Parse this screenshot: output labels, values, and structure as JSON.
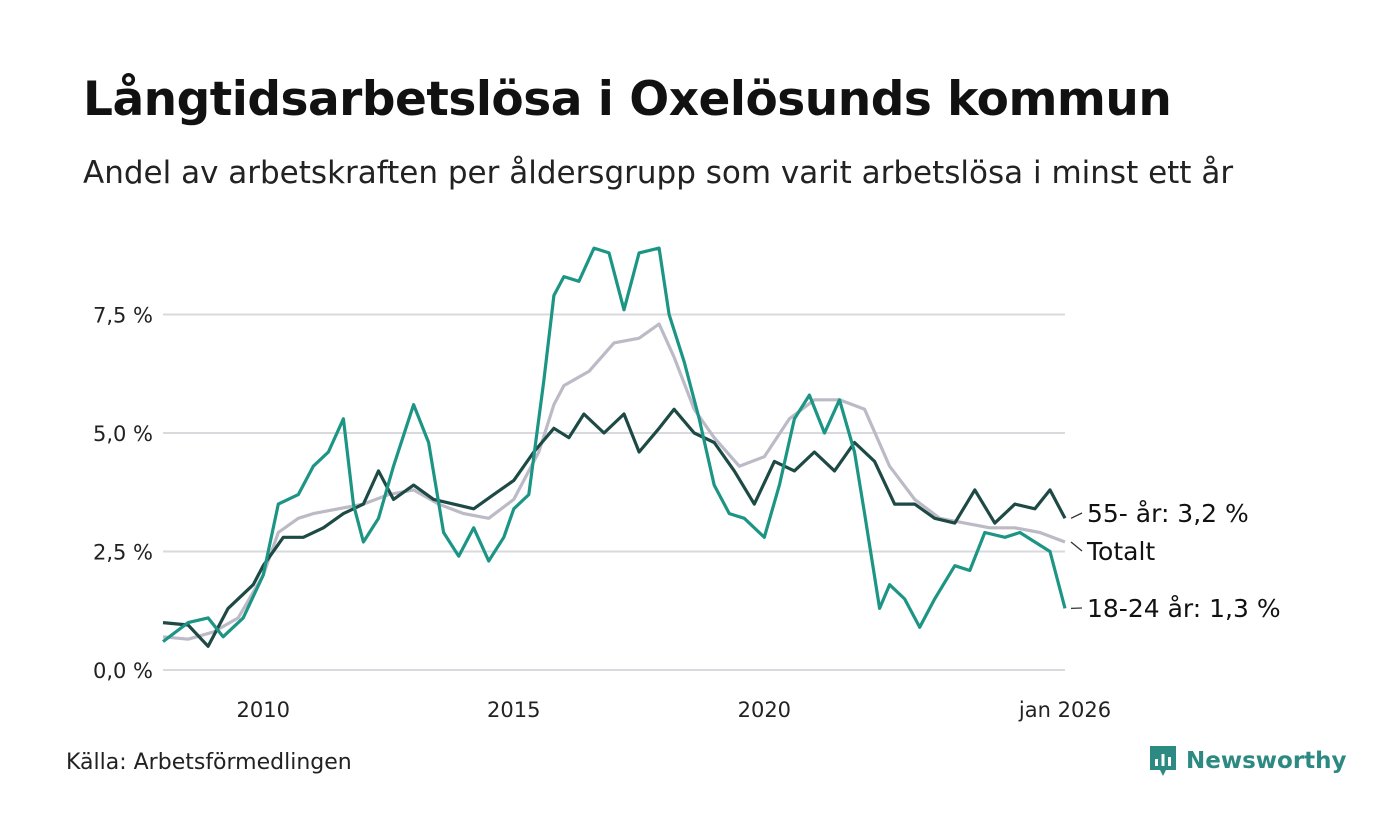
{
  "title": "Långtidsarbetslösa i Oxelösunds kommun",
  "subtitle": "Andel av arbetskraften per åldersgrupp som varit arbetslösa i minst ett år",
  "source": "Källa: Arbetsförmedlingen",
  "brand": "Newsworthy",
  "chart_data": {
    "type": "line",
    "ylim": [
      0,
      9.2
    ],
    "xlim": [
      2008.0,
      2026.05
    ],
    "y_ticks": [
      0,
      2.5,
      5.0,
      7.5
    ],
    "y_tick_labels": [
      "0,0 %",
      "2,5 %",
      "5,0 %",
      "7,5 %"
    ],
    "x_ticks": [
      2010,
      2015,
      2020,
      2026.0
    ],
    "x_tick_labels": [
      "2010",
      "2015",
      "2020",
      "jan 2026"
    ],
    "series": [
      {
        "name": "Totalt",
        "end_label": "Totalt",
        "color": "#bdbac8",
        "points": [
          [
            2008.0,
            0.7
          ],
          [
            2008.5,
            0.65
          ],
          [
            2009.0,
            0.8
          ],
          [
            2009.5,
            1.1
          ],
          [
            2010.0,
            2.0
          ],
          [
            2010.3,
            2.9
          ],
          [
            2010.7,
            3.2
          ],
          [
            2011.0,
            3.3
          ],
          [
            2011.5,
            3.4
          ],
          [
            2012.0,
            3.5
          ],
          [
            2012.5,
            3.7
          ],
          [
            2013.0,
            3.8
          ],
          [
            2013.5,
            3.5
          ],
          [
            2014.0,
            3.3
          ],
          [
            2014.5,
            3.2
          ],
          [
            2015.0,
            3.6
          ],
          [
            2015.5,
            4.6
          ],
          [
            2015.8,
            5.6
          ],
          [
            2016.0,
            6.0
          ],
          [
            2016.5,
            6.3
          ],
          [
            2017.0,
            6.9
          ],
          [
            2017.5,
            7.0
          ],
          [
            2017.9,
            7.3
          ],
          [
            2018.2,
            6.6
          ],
          [
            2018.6,
            5.5
          ],
          [
            2019.0,
            4.9
          ],
          [
            2019.5,
            4.3
          ],
          [
            2020.0,
            4.5
          ],
          [
            2020.5,
            5.3
          ],
          [
            2021.0,
            5.7
          ],
          [
            2021.5,
            5.7
          ],
          [
            2022.0,
            5.5
          ],
          [
            2022.5,
            4.3
          ],
          [
            2023.0,
            3.6
          ],
          [
            2023.5,
            3.2
          ],
          [
            2024.0,
            3.1
          ],
          [
            2024.5,
            3.0
          ],
          [
            2025.0,
            3.0
          ],
          [
            2025.5,
            2.9
          ],
          [
            2026.0,
            2.7
          ]
        ]
      },
      {
        "name": "55- år",
        "end_label": "55- år: 3,2 %",
        "color": "#1e4a45",
        "points": [
          [
            2008.0,
            1.0
          ],
          [
            2008.5,
            0.95
          ],
          [
            2008.9,
            0.5
          ],
          [
            2009.3,
            1.3
          ],
          [
            2009.8,
            1.8
          ],
          [
            2010.0,
            2.2
          ],
          [
            2010.4,
            2.8
          ],
          [
            2010.8,
            2.8
          ],
          [
            2011.2,
            3.0
          ],
          [
            2011.6,
            3.3
          ],
          [
            2012.0,
            3.5
          ],
          [
            2012.3,
            4.2
          ],
          [
            2012.6,
            3.6
          ],
          [
            2013.0,
            3.9
          ],
          [
            2013.4,
            3.6
          ],
          [
            2013.8,
            3.5
          ],
          [
            2014.2,
            3.4
          ],
          [
            2014.6,
            3.7
          ],
          [
            2015.0,
            4.0
          ],
          [
            2015.4,
            4.6
          ],
          [
            2015.8,
            5.1
          ],
          [
            2016.1,
            4.9
          ],
          [
            2016.4,
            5.4
          ],
          [
            2016.8,
            5.0
          ],
          [
            2017.2,
            5.4
          ],
          [
            2017.5,
            4.6
          ],
          [
            2017.9,
            5.1
          ],
          [
            2018.2,
            5.5
          ],
          [
            2018.6,
            5.0
          ],
          [
            2019.0,
            4.8
          ],
          [
            2019.4,
            4.2
          ],
          [
            2019.8,
            3.5
          ],
          [
            2020.2,
            4.4
          ],
          [
            2020.6,
            4.2
          ],
          [
            2021.0,
            4.6
          ],
          [
            2021.4,
            4.2
          ],
          [
            2021.8,
            4.8
          ],
          [
            2022.2,
            4.4
          ],
          [
            2022.6,
            3.5
          ],
          [
            2023.0,
            3.5
          ],
          [
            2023.4,
            3.2
          ],
          [
            2023.8,
            3.1
          ],
          [
            2024.2,
            3.8
          ],
          [
            2024.6,
            3.1
          ],
          [
            2025.0,
            3.5
          ],
          [
            2025.4,
            3.4
          ],
          [
            2025.7,
            3.8
          ],
          [
            2026.0,
            3.2
          ]
        ]
      },
      {
        "name": "18-24 år",
        "end_label": "18-24 år: 1,3 %",
        "color": "#1c9585",
        "points": [
          [
            2008.0,
            0.6
          ],
          [
            2008.5,
            1.0
          ],
          [
            2008.9,
            1.1
          ],
          [
            2009.2,
            0.7
          ],
          [
            2009.6,
            1.1
          ],
          [
            2010.0,
            2.0
          ],
          [
            2010.3,
            3.5
          ],
          [
            2010.7,
            3.7
          ],
          [
            2011.0,
            4.3
          ],
          [
            2011.3,
            4.6
          ],
          [
            2011.6,
            5.3
          ],
          [
            2011.8,
            3.5
          ],
          [
            2012.0,
            2.7
          ],
          [
            2012.3,
            3.2
          ],
          [
            2012.6,
            4.3
          ],
          [
            2013.0,
            5.6
          ],
          [
            2013.3,
            4.8
          ],
          [
            2013.6,
            2.9
          ],
          [
            2013.9,
            2.4
          ],
          [
            2014.2,
            3.0
          ],
          [
            2014.5,
            2.3
          ],
          [
            2014.8,
            2.8
          ],
          [
            2015.0,
            3.4
          ],
          [
            2015.3,
            3.7
          ],
          [
            2015.6,
            6.1
          ],
          [
            2015.8,
            7.9
          ],
          [
            2016.0,
            8.3
          ],
          [
            2016.3,
            8.2
          ],
          [
            2016.6,
            8.9
          ],
          [
            2016.9,
            8.8
          ],
          [
            2017.2,
            7.6
          ],
          [
            2017.5,
            8.8
          ],
          [
            2017.9,
            8.9
          ],
          [
            2018.1,
            7.5
          ],
          [
            2018.4,
            6.5
          ],
          [
            2018.7,
            5.3
          ],
          [
            2019.0,
            3.9
          ],
          [
            2019.3,
            3.3
          ],
          [
            2019.6,
            3.2
          ],
          [
            2020.0,
            2.8
          ],
          [
            2020.3,
            3.9
          ],
          [
            2020.6,
            5.3
          ],
          [
            2020.9,
            5.8
          ],
          [
            2021.2,
            5.0
          ],
          [
            2021.5,
            5.7
          ],
          [
            2021.8,
            4.6
          ],
          [
            2022.0,
            3.3
          ],
          [
            2022.3,
            1.3
          ],
          [
            2022.5,
            1.8
          ],
          [
            2022.8,
            1.5
          ],
          [
            2023.1,
            0.9
          ],
          [
            2023.4,
            1.5
          ],
          [
            2023.8,
            2.2
          ],
          [
            2024.1,
            2.1
          ],
          [
            2024.4,
            2.9
          ],
          [
            2024.8,
            2.8
          ],
          [
            2025.1,
            2.9
          ],
          [
            2025.4,
            2.7
          ],
          [
            2025.7,
            2.5
          ],
          [
            2026.0,
            1.3
          ]
        ]
      }
    ]
  }
}
